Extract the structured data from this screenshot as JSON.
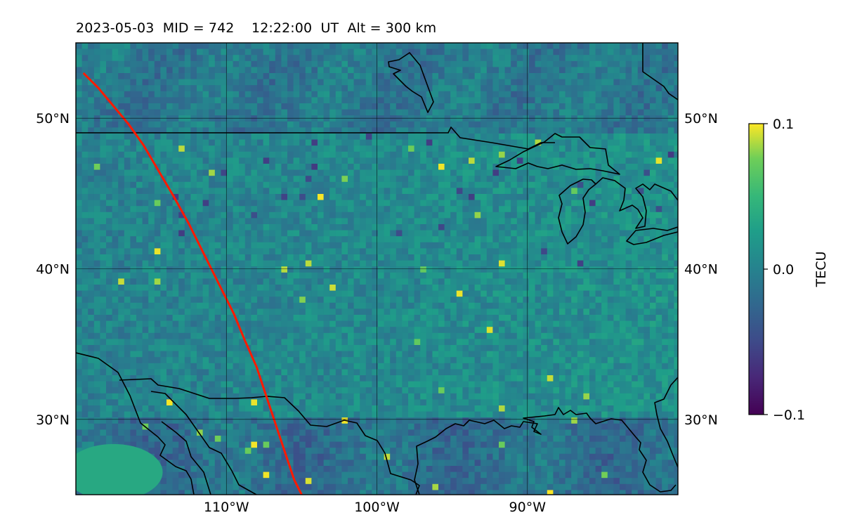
{
  "header": {
    "title": "2023-05-03  MID = 742    12:22:00  UT  Alt = 300 km"
  },
  "chart_data": {
    "type": "heatmap",
    "title": "2023-05-03  MID = 742    12:22:00  UT  Alt = 300 km",
    "projection": "lat-lon map with coastlines and country borders",
    "lon_range": [
      -120,
      -80
    ],
    "lat_range": [
      25,
      55
    ],
    "grid": true,
    "x_ticks": [
      -110,
      -100,
      -90
    ],
    "x_tick_labels": [
      "110°W",
      "100°W",
      "90°W"
    ],
    "y_ticks": [
      30,
      40,
      50
    ],
    "y_tick_labels": [
      "30°N",
      "40°N",
      "50°N"
    ],
    "field_description": "Detrended TEC perturbation, mostly near 0 with small positive patches in the east",
    "colormap": "viridis",
    "colorbar": {
      "label": "TECU",
      "min": -0.1,
      "max": 0.1,
      "ticks": [
        0.1,
        0.0,
        -0.1
      ],
      "tick_labels": [
        "0.1",
        "0.0",
        "−0.1"
      ]
    },
    "overlay_line": {
      "color": "#ff1a00",
      "points": [
        [
          -119.5,
          53.0
        ],
        [
          -118.5,
          52.0
        ],
        [
          -117.5,
          50.8
        ],
        [
          -116.5,
          49.6
        ],
        [
          -115.5,
          48.2
        ],
        [
          -114.5,
          46.5
        ],
        [
          -113.5,
          44.8
        ],
        [
          -112.5,
          43.0
        ],
        [
          -111.5,
          41.0
        ],
        [
          -110.5,
          39.0
        ],
        [
          -109.5,
          37.0
        ],
        [
          -108.8,
          35.3
        ],
        [
          -108.0,
          33.5
        ],
        [
          -107.5,
          32.0
        ],
        [
          -107.0,
          30.5
        ],
        [
          -106.5,
          29.0
        ],
        [
          -106.0,
          27.5
        ],
        [
          -105.5,
          26.0
        ],
        [
          -105.0,
          25.0
        ]
      ]
    }
  }
}
